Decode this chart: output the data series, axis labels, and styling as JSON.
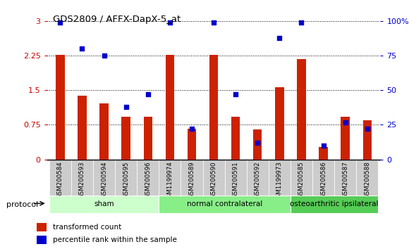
{
  "title": "GDS2809 / AFFX-DapX-5_at",
  "categories": [
    "GSM200584",
    "GSM200593",
    "GSM200594",
    "GSM200595",
    "GSM200596",
    "GSM1199974",
    "GSM200589",
    "GSM200590",
    "GSM200591",
    "GSM200592",
    "GSM1199973",
    "GSM200585",
    "GSM200586",
    "GSM200587",
    "GSM200588"
  ],
  "red_values": [
    2.27,
    1.38,
    1.22,
    0.93,
    0.93,
    2.27,
    0.67,
    2.27,
    0.93,
    0.65,
    1.57,
    2.17,
    0.27,
    0.93,
    0.85
  ],
  "blue_values": [
    99,
    80,
    75,
    38,
    47,
    99,
    22,
    99,
    47,
    12,
    88,
    99,
    10,
    27,
    22
  ],
  "groups": [
    {
      "label": "sham",
      "start": 0,
      "end": 5,
      "color": "#ccffcc"
    },
    {
      "label": "normal contralateral",
      "start": 5,
      "end": 11,
      "color": "#88ee88"
    },
    {
      "label": "osteoarthritic ipsilateral",
      "start": 11,
      "end": 15,
      "color": "#55cc55"
    }
  ],
  "protocol_label": "protocol",
  "red_label": "transformed count",
  "blue_label": "percentile rank within the sample",
  "ylim_left": [
    0,
    3
  ],
  "ylim_right": [
    0,
    100
  ],
  "yticks_left": [
    0,
    0.75,
    1.5,
    2.25,
    3
  ],
  "yticks_right": [
    0,
    25,
    50,
    75,
    100
  ],
  "left_axis_color": "#cc0000",
  "right_axis_color": "#0000cc",
  "bar_color": "#cc2200",
  "dot_color": "#0000cc",
  "tick_bg_color": "#cccccc"
}
